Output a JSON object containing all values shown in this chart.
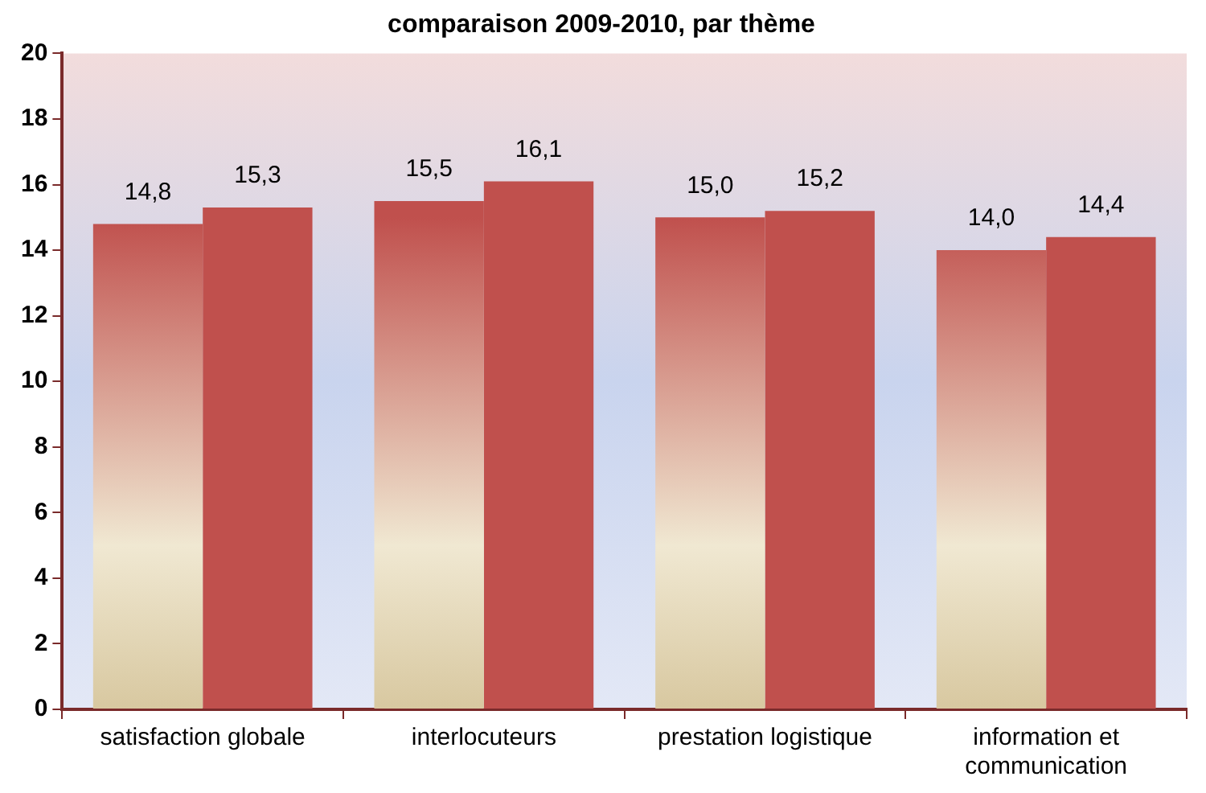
{
  "chart_data": {
    "type": "bar",
    "title": "comparaison 2009-2010, par thème",
    "categories": [
      "satisfaction globale",
      "interlocuteurs",
      "prestation logistique",
      "information et communication"
    ],
    "series": [
      {
        "color": "#c0504d",
        "values": [
          14.8,
          15.5,
          15.0,
          14.0
        ],
        "value_labels": [
          "14,8",
          "15,5",
          "15,0",
          "14,0"
        ]
      },
      {
        "color": "#c0504d",
        "values": [
          15.3,
          16.1,
          15.2,
          14.4
        ],
        "value_labels": [
          "15,3",
          "16,1",
          "15,2",
          "14,4"
        ]
      }
    ],
    "ylim": [
      0,
      20
    ],
    "yticks": [
      0,
      2,
      4,
      6,
      8,
      10,
      12,
      14,
      16,
      18,
      20
    ],
    "grid": false,
    "legend": false
  }
}
